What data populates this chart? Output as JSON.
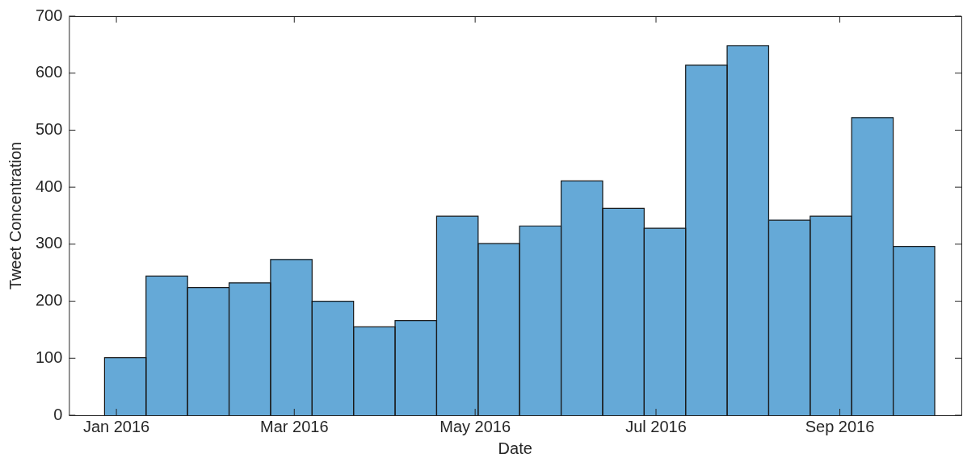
{
  "chart_data": {
    "type": "histogram",
    "xlabel": "Date",
    "ylabel": "Tweet Concentration",
    "bins": [
      "2015-12-28",
      "2016-01-11",
      "2016-01-25",
      "2016-02-08",
      "2016-02-22",
      "2016-03-07",
      "2016-03-21",
      "2016-04-04",
      "2016-04-18",
      "2016-05-02",
      "2016-05-16",
      "2016-05-30",
      "2016-06-13",
      "2016-06-27",
      "2016-07-11",
      "2016-07-25",
      "2016-08-08",
      "2016-08-22",
      "2016-09-05",
      "2016-09-19",
      "2016-10-03"
    ],
    "values": [
      101,
      244,
      224,
      232,
      273,
      200,
      155,
      166,
      349,
      301,
      332,
      411,
      363,
      328,
      614,
      648,
      342,
      349,
      522,
      296
    ],
    "color": "#65a9d7",
    "xlim": [
      "2015-12-16",
      "2016-10-12"
    ],
    "xticks": [
      {
        "value": "2016-01-01",
        "label": "Jan 2016"
      },
      {
        "value": "2016-03-01",
        "label": "Mar 2016"
      },
      {
        "value": "2016-05-01",
        "label": "May 2016"
      },
      {
        "value": "2016-07-01",
        "label": "Jul 2016"
      },
      {
        "value": "2016-09-01",
        "label": "Sep 2016"
      }
    ],
    "ylim": [
      0,
      700
    ],
    "yticks": [
      0,
      100,
      200,
      300,
      400,
      500,
      600,
      700
    ],
    "grid": false,
    "legend": false
  }
}
